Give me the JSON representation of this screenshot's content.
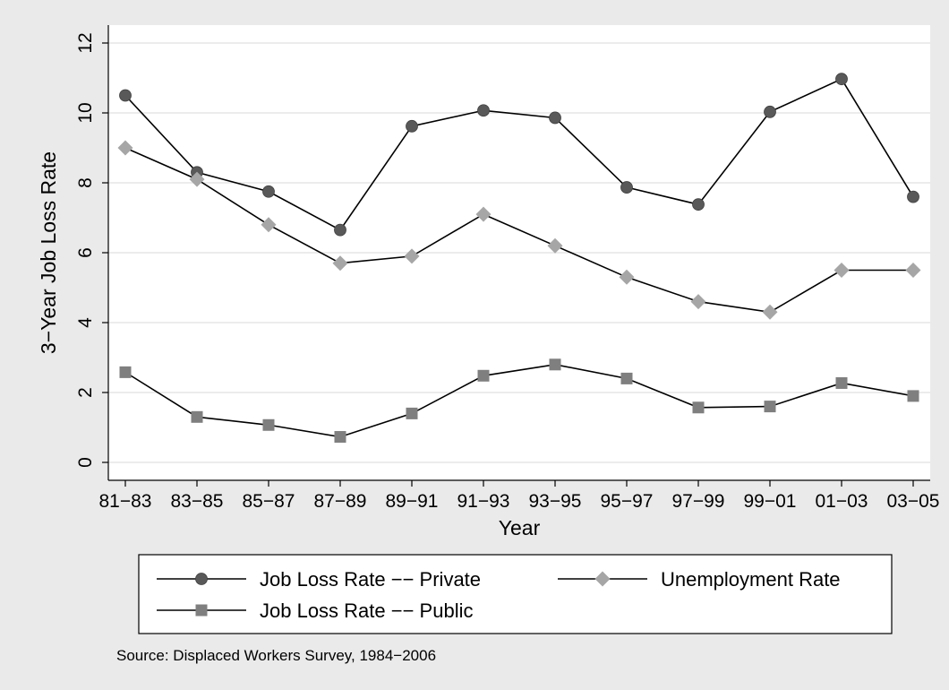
{
  "chart_data": {
    "type": "line",
    "xlabel": "Year",
    "ylabel": "3−Year Job Loss Rate",
    "ylim": [
      0,
      12
    ],
    "yticks": [
      0,
      2,
      4,
      6,
      8,
      10,
      12
    ],
    "categories": [
      "81−83",
      "83−85",
      "85−87",
      "87−89",
      "89−91",
      "91−93",
      "93−95",
      "95−97",
      "97−99",
      "99−01",
      "01−03",
      "03−05"
    ],
    "grid": true,
    "legend_position": "bottom",
    "series": [
      {
        "name": "Job Loss Rate −− Private",
        "marker": "circle",
        "marker_color": "#595959",
        "line_color": "#000000",
        "values": [
          10.5,
          8.3,
          7.75,
          6.65,
          9.62,
          10.07,
          9.86,
          7.87,
          7.38,
          10.03,
          10.97,
          7.6
        ]
      },
      {
        "name": "Unemployment Rate",
        "marker": "diamond",
        "marker_color": "#a6a6a6",
        "line_color": "#000000",
        "values": [
          9.0,
          8.1,
          6.8,
          5.7,
          5.9,
          7.1,
          6.2,
          5.3,
          4.6,
          4.3,
          5.5,
          5.5
        ]
      },
      {
        "name": "Job Loss Rate −− Public",
        "marker": "square",
        "marker_color": "#7f7f7f",
        "line_color": "#000000",
        "values": [
          2.58,
          1.3,
          1.07,
          0.73,
          1.4,
          2.48,
          2.8,
          2.4,
          1.57,
          1.6,
          2.27,
          1.9
        ]
      }
    ],
    "note": "Source: Displaced Workers Survey, 1984−2006"
  }
}
